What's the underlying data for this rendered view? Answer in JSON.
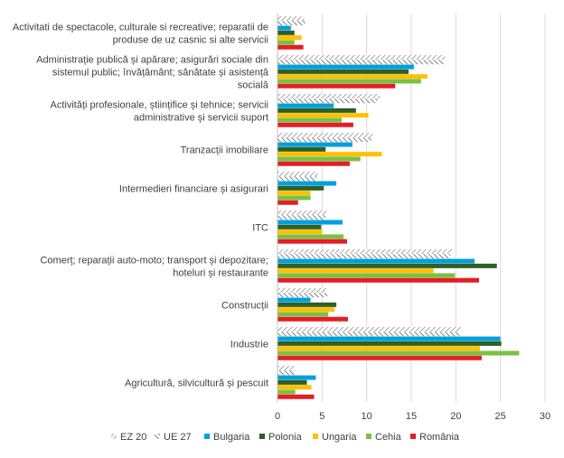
{
  "chart_data": {
    "type": "bar",
    "orientation": "horizontal",
    "categories": [
      [
        "Activitati de spectacole, culturale si recreative; reparatii de",
        "produse de uz casnic si alte servicii"
      ],
      [
        "Administrație publică și apărare; asigurări sociale din",
        "sistemul public; învățământ; sănătate și asistență",
        "socială"
      ],
      [
        "Activități  profesionale, științifice și tehnice; servicii",
        "administrative și servicii suport"
      ],
      [
        "Tranzacții imobiliare"
      ],
      [
        "Intermedieri financiare și asigurari"
      ],
      [
        "ITC"
      ],
      [
        "Comerț; reparații auto-moto; transport și depozitare;",
        "hoteluri și restaurante"
      ],
      [
        "Construcții"
      ],
      [
        "Industrie"
      ],
      [
        "Agricultură, silvicultură și pescuit"
      ]
    ],
    "series": [
      {
        "name": "EZ 20",
        "color": "#a6a6a6",
        "pattern": "diag-light",
        "values": [
          3.0,
          18.8,
          11.5,
          10.7,
          4.5,
          5.5,
          19.6,
          5.5,
          20.7,
          2.0
        ]
      },
      {
        "name": "UE 27",
        "color": "#7f7f7f",
        "pattern": "diag-dark",
        "values": [
          3.1,
          18.6,
          11.2,
          10.5,
          4.4,
          5.4,
          19.4,
          5.6,
          20.4,
          1.9
        ]
      },
      {
        "name": "Bulgaria",
        "color": "#00a0dc",
        "values": [
          1.5,
          15.3,
          6.3,
          8.4,
          6.6,
          7.3,
          22.1,
          3.7,
          25.0,
          4.3
        ]
      },
      {
        "name": "Polonia",
        "color": "#2e5f28",
        "values": [
          1.9,
          14.7,
          8.8,
          5.4,
          5.2,
          4.9,
          24.6,
          6.6,
          25.1,
          3.3
        ]
      },
      {
        "name": "Ungaria",
        "color": "#ffc000",
        "values": [
          2.7,
          16.8,
          10.2,
          11.7,
          3.7,
          5.0,
          17.5,
          6.4,
          22.7,
          3.8
        ]
      },
      {
        "name": "Cehia",
        "color": "#7ac143",
        "values": [
          1.9,
          16.1,
          7.2,
          9.3,
          3.7,
          7.4,
          19.9,
          5.7,
          27.1,
          2.0
        ]
      },
      {
        "name": "România",
        "color": "#e31e24",
        "values": [
          2.9,
          13.2,
          8.5,
          8.1,
          2.3,
          7.8,
          22.6,
          7.9,
          22.9,
          4.1
        ]
      }
    ],
    "xlim": [
      0,
      30
    ],
    "xticks": [
      0,
      5,
      10,
      15,
      20,
      25,
      30
    ],
    "title": "",
    "xlabel": "",
    "ylabel": "",
    "grid": "vertical",
    "legend_position": "bottom"
  }
}
